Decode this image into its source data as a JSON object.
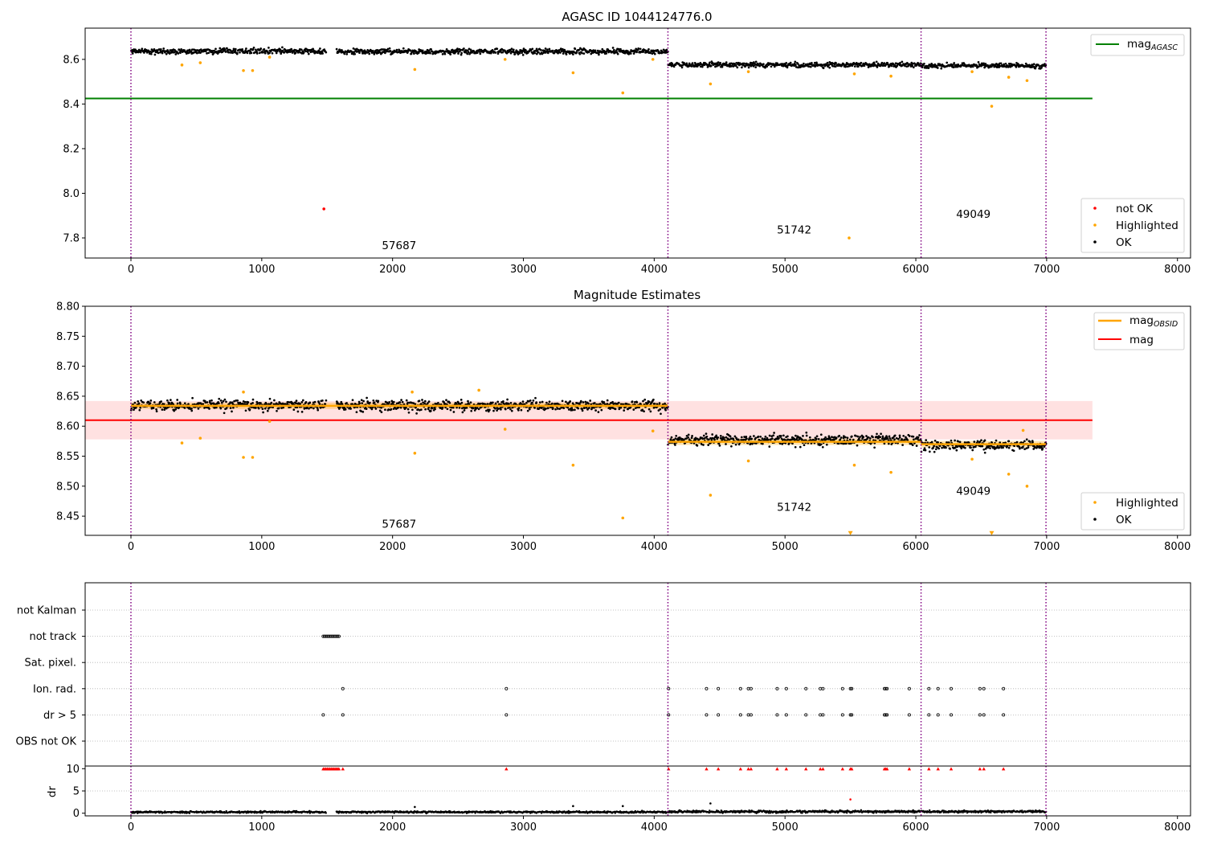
{
  "figure": {
    "obsids": [
      "57687",
      "51742",
      "49049"
    ],
    "obsid_boundaries": [
      0,
      4105,
      6040,
      6995
    ],
    "obsid_boundary_color": "#800080"
  },
  "chart_data": [
    {
      "type": "scatter",
      "title": "AGASC ID 1044124776.0",
      "xlim": [
        -350,
        8100
      ],
      "ylim": [
        7.71,
        8.74
      ],
      "xticks": [
        "0",
        "1000",
        "2000",
        "3000",
        "4000",
        "5000",
        "6000",
        "7000",
        "8000"
      ],
      "yticks": [
        "7.8",
        "8.0",
        "8.2",
        "8.4",
        "8.6"
      ],
      "obsid_label_positions": [
        [
          2050,
          7.75
        ],
        [
          5070,
          7.82
        ],
        [
          6440,
          7.89
        ]
      ],
      "hlines": [
        {
          "name": "mag_AGASC",
          "value": 8.425,
          "xmax": 7350,
          "color": "#008000"
        }
      ],
      "series": [
        {
          "name": "not OK",
          "color": "#ff0000",
          "points": [
            [
              1475,
              7.93
            ]
          ]
        },
        {
          "name": "Highlighted",
          "color": "#ffa500",
          "points": [
            [
              390,
              8.575
            ],
            [
              530,
              8.585
            ],
            [
              860,
              8.55
            ],
            [
              930,
              8.55
            ],
            [
              1060,
              8.61
            ],
            [
              2170,
              8.555
            ],
            [
              2860,
              8.6
            ],
            [
              3380,
              8.54
            ],
            [
              3760,
              8.45
            ],
            [
              3990,
              8.6
            ],
            [
              4430,
              8.49
            ],
            [
              4720,
              8.545
            ],
            [
              5490,
              7.8
            ],
            [
              5530,
              8.535
            ],
            [
              5810,
              8.525
            ],
            [
              6430,
              8.545
            ],
            [
              6580,
              8.39
            ],
            [
              6710,
              8.52
            ],
            [
              6850,
              8.505
            ]
          ]
        },
        {
          "name": "OK",
          "color": "#000000",
          "segments": [
            {
              "x0": 0,
              "x1": 1490,
              "mean": 8.637,
              "noise": 0.012
            },
            {
              "x0": 1570,
              "x1": 4105,
              "mean": 8.635,
              "noise": 0.012
            },
            {
              "x0": 4105,
              "x1": 6040,
              "mean": 8.576,
              "noise": 0.011
            },
            {
              "x0": 6040,
              "x1": 6995,
              "mean": 8.572,
              "noise": 0.011
            }
          ]
        }
      ],
      "legend": {
        "placement": "upper-right and lower-right",
        "upper": [
          "mag_AGASC"
        ],
        "lower": [
          "not OK",
          "Highlighted",
          "OK"
        ]
      }
    },
    {
      "type": "scatter",
      "title": "Magnitude Estimates",
      "xlim": [
        -350,
        8100
      ],
      "ylim": [
        8.418,
        8.8
      ],
      "xticks": [
        "0",
        "1000",
        "2000",
        "3000",
        "4000",
        "5000",
        "6000",
        "7000",
        "8000"
      ],
      "yticks": [
        "8.45",
        "8.50",
        "8.55",
        "8.60",
        "8.65",
        "8.70",
        "8.75",
        "8.80"
      ],
      "obsid_label_positions": [
        [
          2050,
          8.431
        ],
        [
          5070,
          8.459
        ],
        [
          6440,
          8.486
        ]
      ],
      "hlines": [
        {
          "name": "mag",
          "value": 8.61,
          "xmax": 7350,
          "color": "#ff0000",
          "band": [
            8.578,
            8.642
          ]
        }
      ],
      "obsid_mags": [
        {
          "x0": 0,
          "x1": 4105,
          "value": 8.634
        },
        {
          "x0": 4105,
          "x1": 6040,
          "value": 8.574
        },
        {
          "x0": 6040,
          "x1": 6995,
          "value": 8.57
        }
      ],
      "series": [
        {
          "name": "Highlighted",
          "color": "#ffa500",
          "points": [
            [
              390,
              8.572
            ],
            [
              530,
              8.58
            ],
            [
              860,
              8.548
            ],
            [
              930,
              8.548
            ],
            [
              860,
              8.657
            ],
            [
              1060,
              8.608
            ],
            [
              2150,
              8.657
            ],
            [
              2170,
              8.555
            ],
            [
              2660,
              8.66
            ],
            [
              2860,
              8.595
            ],
            [
              3380,
              8.535
            ],
            [
              3760,
              8.447
            ],
            [
              3990,
              8.592
            ],
            [
              4430,
              8.485
            ],
            [
              4720,
              8.542
            ],
            [
              5530,
              8.535
            ],
            [
              5810,
              8.523
            ],
            [
              6430,
              8.545
            ],
            [
              6710,
              8.52
            ],
            [
              6820,
              8.593
            ],
            [
              6850,
              8.5
            ],
            [
              5500,
              8.421
            ],
            [
              6580,
              8.421
            ]
          ]
        },
        {
          "name": "OK",
          "color": "#000000",
          "segments": [
            {
              "x0": 0,
              "x1": 1490,
              "mean": 8.635,
              "noise": 0.009
            },
            {
              "x0": 1570,
              "x1": 4105,
              "mean": 8.634,
              "noise": 0.009
            },
            {
              "x0": 4105,
              "x1": 6040,
              "mean": 8.577,
              "noise": 0.009
            },
            {
              "x0": 6040,
              "x1": 6995,
              "mean": 8.568,
              "noise": 0.008
            }
          ]
        }
      ],
      "legend": {
        "placement": "upper-right and lower-right",
        "upper": [
          "mag_OBSID",
          "mag"
        ],
        "lower": [
          "Highlighted",
          "OK"
        ]
      }
    },
    {
      "type": "scatter",
      "title": "",
      "xlim": [
        -350,
        8100
      ],
      "categories": [
        "not Kalman",
        "not track",
        "Sat. pixel.",
        "Ion. rad.",
        "dr > 5",
        "OBS not OK"
      ],
      "flags": {
        "not track": [
          1470,
          1480,
          1490,
          1500,
          1510,
          1520,
          1530,
          1540,
          1550,
          1560,
          1570,
          1580,
          1590
        ],
        "Ion. rad.": [
          1620,
          2870,
          4110,
          4400,
          4490,
          4660,
          4720,
          4740,
          4940,
          5010,
          5160,
          5270,
          5290,
          5440,
          5500,
          5510,
          5760,
          5770,
          5780,
          5950,
          6100,
          6170,
          6270,
          6490,
          6520,
          6670
        ],
        "dr > 5": [
          1470,
          1620,
          2870,
          4110,
          4400,
          4490,
          4660,
          4720,
          4740,
          4940,
          5010,
          5160,
          5270,
          5290,
          5440,
          5500,
          5510,
          5760,
          5770,
          5780,
          5950,
          6100,
          6170,
          6270,
          6490,
          6520,
          6670
        ]
      },
      "ylabel": "dr",
      "dr_yticks": [
        "0",
        "5",
        "10"
      ],
      "dr_ylim": [
        -0.6,
        10.6
      ],
      "dr_clipped_x": [
        1470,
        1480,
        1490,
        1500,
        1510,
        1520,
        1530,
        1540,
        1550,
        1560,
        1570,
        1580,
        1590,
        1620,
        2870,
        4110,
        4400,
        4490,
        4660,
        4720,
        4740,
        4940,
        5010,
        5160,
        5270,
        5290,
        5440,
        5500,
        5510,
        5760,
        5770,
        5780,
        5950,
        6100,
        6170,
        6270,
        6490,
        6520,
        6670
      ],
      "dr_outliers": [
        [
          2170,
          1.4
        ],
        [
          3380,
          1.6
        ],
        [
          3760,
          1.6
        ],
        [
          4430,
          2.2
        ],
        [
          5500,
          3.1
        ]
      ],
      "dr_segments": [
        {
          "x0": 0,
          "x1": 1490,
          "mean": 0.25,
          "noise": 0.2
        },
        {
          "x0": 1570,
          "x1": 4105,
          "mean": 0.25,
          "noise": 0.2
        },
        {
          "x0": 4105,
          "x1": 6995,
          "mean": 0.35,
          "noise": 0.25
        }
      ]
    }
  ],
  "colors": {
    "not_ok": "#ff0000",
    "highlighted": "#ffa500",
    "ok": "#000000",
    "mag_agasc": "#008000",
    "mag": "#ff0000",
    "mag_obsid": "#ffa500",
    "mag_band": "#ffc8c8",
    "grid": "#b0b0b0"
  }
}
